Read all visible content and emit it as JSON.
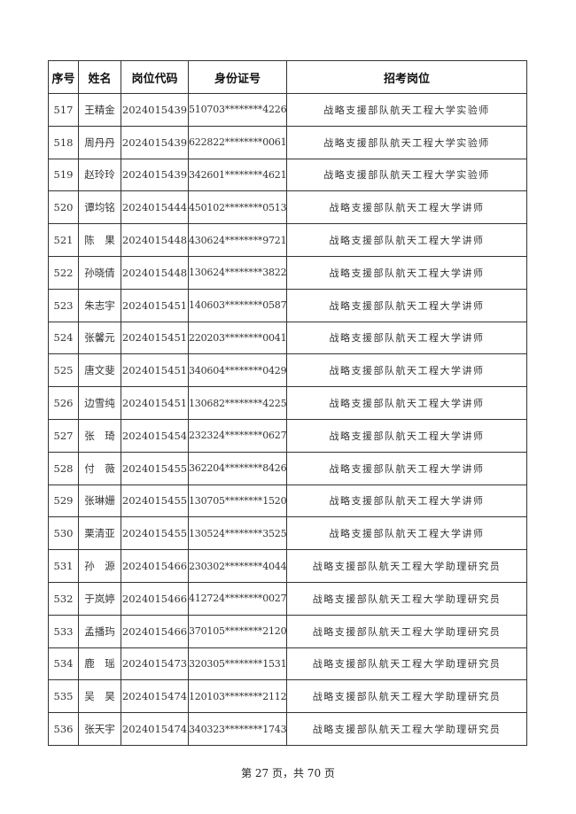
{
  "table": {
    "headers": [
      "序号",
      "姓名",
      "岗位代码",
      "身份证号",
      "招考岗位"
    ],
    "rows": [
      [
        "517",
        "王精金",
        "2024015439",
        "510703********4226",
        "战略支援部队航天工程大学实验师"
      ],
      [
        "518",
        "周丹丹",
        "2024015439",
        "622822********0061",
        "战略支援部队航天工程大学实验师"
      ],
      [
        "519",
        "赵玲玲",
        "2024015439",
        "342601********4621",
        "战略支援部队航天工程大学实验师"
      ],
      [
        "520",
        "谭均铭",
        "2024015444",
        "450102********0513",
        "战略支援部队航天工程大学讲师"
      ],
      [
        "521",
        "陈　果",
        "2024015448",
        "430624********9721",
        "战略支援部队航天工程大学讲师"
      ],
      [
        "522",
        "孙晓倩",
        "2024015448",
        "130624********3822",
        "战略支援部队航天工程大学讲师"
      ],
      [
        "523",
        "朱志宇",
        "2024015451",
        "140603********0587",
        "战略支援部队航天工程大学讲师"
      ],
      [
        "524",
        "张馨元",
        "2024015451",
        "220203********0041",
        "战略支援部队航天工程大学讲师"
      ],
      [
        "525",
        "唐文斐",
        "2024015451",
        "340604********0429",
        "战略支援部队航天工程大学讲师"
      ],
      [
        "526",
        "边雪纯",
        "2024015451",
        "130682********4225",
        "战略支援部队航天工程大学讲师"
      ],
      [
        "527",
        "张　琦",
        "2024015454",
        "232324********0627",
        "战略支援部队航天工程大学讲师"
      ],
      [
        "528",
        "付　薇",
        "2024015455",
        "362204********8426",
        "战略支援部队航天工程大学讲师"
      ],
      [
        "529",
        "张琳姗",
        "2024015455",
        "130705********1520",
        "战略支援部队航天工程大学讲师"
      ],
      [
        "530",
        "栗清亚",
        "2024015455",
        "130524********3525",
        "战略支援部队航天工程大学讲师"
      ],
      [
        "531",
        "孙　源",
        "2024015466",
        "230302********4044",
        "战略支援部队航天工程大学助理研究员"
      ],
      [
        "532",
        "于岚婷",
        "2024015466",
        "412724********0027",
        "战略支援部队航天工程大学助理研究员"
      ],
      [
        "533",
        "孟播玙",
        "2024015466",
        "370105********2120",
        "战略支援部队航天工程大学助理研究员"
      ],
      [
        "534",
        "鹿　瑶",
        "2024015473",
        "320305********1531",
        "战略支援部队航天工程大学助理研究员"
      ],
      [
        "535",
        "吴　昊",
        "2024015474",
        "120103********2112",
        "战略支援部队航天工程大学助理研究员"
      ],
      [
        "536",
        "张天宇",
        "2024015474",
        "340323********1743",
        "战略支援部队航天工程大学助理研究员"
      ]
    ]
  },
  "footer": "第 27 页，共 70 页"
}
